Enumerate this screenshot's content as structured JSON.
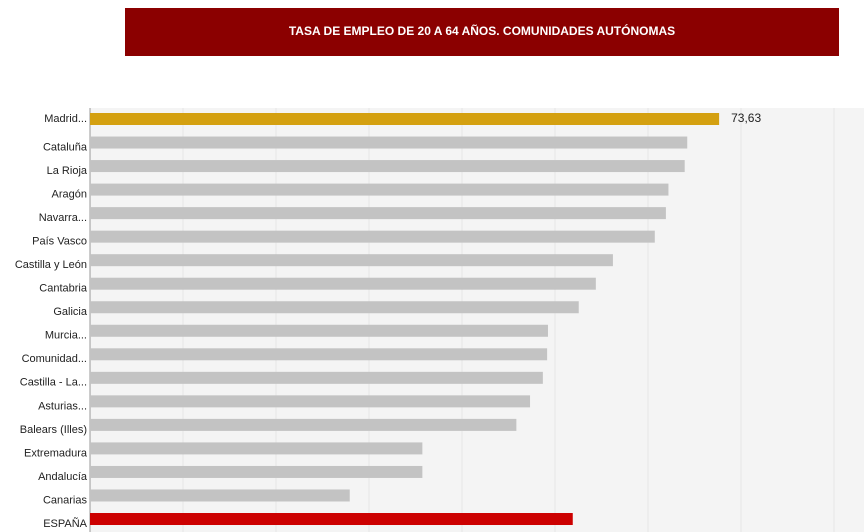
{
  "chart_data": {
    "type": "bar",
    "orientation": "horizontal",
    "title": "TASA DE EMPLEO DE 20 A 64 AÑOS. COMUNIDADES AUTÓNOMAS",
    "categories": [
      "Madrid...",
      "Cataluña",
      "La Rioja",
      "Aragón",
      "Navarra...",
      "País Vasco",
      "Castilla y León",
      "Cantabria",
      "Galicia",
      "Murcia...",
      "Comunidad...",
      "Castilla - La...",
      "Asturias...",
      "Balears (Illes)",
      "Extremadura",
      "Andalucía",
      "Canarias",
      "ESPAÑA"
    ],
    "values": [
      73.63,
      69.9,
      69.6,
      67.7,
      67.4,
      66.1,
      61.2,
      59.2,
      57.2,
      53.6,
      53.5,
      53.0,
      51.5,
      49.9,
      38.9,
      38.9,
      30.4,
      56.5
    ],
    "value_labels": [
      "73,63",
      null,
      null,
      null,
      null,
      null,
      null,
      null,
      null,
      null,
      null,
      null,
      null,
      null,
      null,
      null,
      null,
      null
    ],
    "colors": [
      "#d4a010",
      "#c3c3c3",
      "#c3c3c3",
      "#c3c3c3",
      "#c3c3c3",
      "#c3c3c3",
      "#c3c3c3",
      "#c3c3c3",
      "#c3c3c3",
      "#c3c3c3",
      "#c3c3c3",
      "#c3c3c3",
      "#c3c3c3",
      "#c3c3c3",
      "#c3c3c3",
      "#c3c3c3",
      "#c3c3c3",
      "#cc0000"
    ],
    "xlim": [
      0,
      90
    ]
  }
}
